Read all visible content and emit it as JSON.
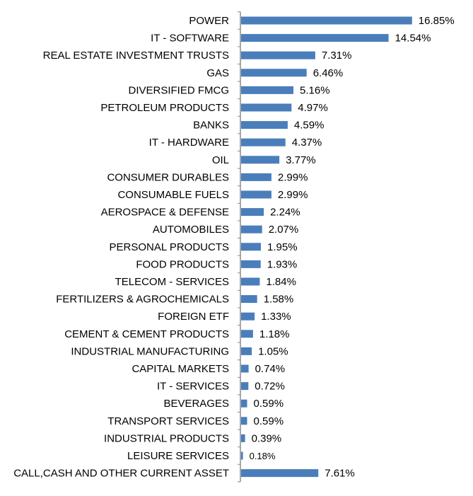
{
  "chart_data": {
    "type": "bar",
    "orientation": "horizontal",
    "title": "",
    "xlabel": "",
    "ylabel": "",
    "grid": false,
    "legend": "none",
    "bar_color": "#4a7ebb",
    "xlim": [
      0,
      17
    ],
    "categories": [
      "POWER",
      "IT - SOFTWARE",
      "REAL ESTATE INVESTMENT TRUSTS",
      "GAS",
      "DIVERSIFIED FMCG",
      "PETROLEUM PRODUCTS",
      "BANKS",
      "IT - HARDWARE",
      "OIL",
      "CONSUMER DURABLES",
      "CONSUMABLE FUELS",
      "AEROSPACE & DEFENSE",
      "AUTOMOBILES",
      "PERSONAL PRODUCTS",
      "FOOD PRODUCTS",
      "TELECOM - SERVICES",
      "FERTILIZERS & AGROCHEMICALS",
      "FOREIGN ETF",
      "CEMENT & CEMENT PRODUCTS",
      "INDUSTRIAL MANUFACTURING",
      "CAPITAL MARKETS",
      "IT - SERVICES",
      "BEVERAGES",
      "TRANSPORT SERVICES",
      "INDUSTRIAL PRODUCTS",
      "LEISURE SERVICES",
      "CALL,CASH AND OTHER CURRENT ASSET"
    ],
    "values": [
      16.85,
      14.54,
      7.31,
      6.46,
      5.16,
      4.97,
      4.59,
      4.37,
      3.77,
      2.99,
      2.99,
      2.24,
      2.07,
      1.95,
      1.93,
      1.84,
      1.58,
      1.33,
      1.18,
      1.05,
      0.74,
      0.72,
      0.59,
      0.59,
      0.39,
      0.18,
      7.61
    ],
    "value_labels": [
      "16.85%",
      "14.54%",
      "7.31%",
      "6.46%",
      "5.16%",
      "4.97%",
      "4.59%",
      "4.37%",
      "3.77%",
      "2.99%",
      "2.99%",
      "2.24%",
      "2.07%",
      "1.95%",
      "1.93%",
      "1.84%",
      "1.58%",
      "1.33%",
      "1.18%",
      "1.05%",
      "0.74%",
      "0.72%",
      "0.59%",
      "0.59%",
      "0.39%",
      "0.18%",
      "7.61%"
    ]
  }
}
